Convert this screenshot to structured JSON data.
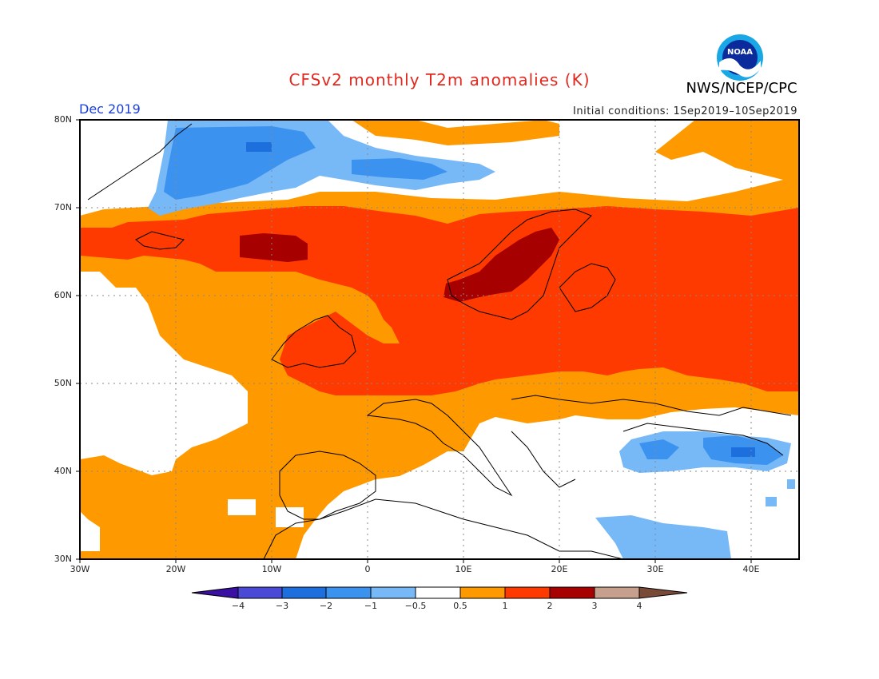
{
  "header": {
    "title": "CFSv2 monthly T2m anomalies (K)",
    "agency": "NWS/NCEP/CPC",
    "logo_text": "NOAA",
    "valid_month": "Dec 2019",
    "initial_conditions": "Initial conditions: 1Sep2019–10Sep2019"
  },
  "map": {
    "region": "Europe / North Atlantic",
    "lon_range": [
      -30,
      45
    ],
    "lat_range": [
      30,
      80
    ],
    "lat_ticks": [
      "80N",
      "70N",
      "60N",
      "50N",
      "40N",
      "30N"
    ],
    "lon_ticks": [
      "30W",
      "20W",
      "10W",
      "0",
      "10E",
      "20E",
      "30E",
      "40E"
    ]
  },
  "colorbar": {
    "labels": [
      "−4",
      "−3",
      "−2",
      "−1",
      "−0.5",
      "0.5",
      "1",
      "2",
      "3",
      "4"
    ],
    "colors": [
      "#3a0fa3",
      "#4a4ad6",
      "#1c6fdc",
      "#3c92ef",
      "#77b8f7",
      "#ffffff",
      "#ff9900",
      "#ff3a00",
      "#a70000",
      "#c7a08d",
      "#7a4a38"
    ]
  }
}
